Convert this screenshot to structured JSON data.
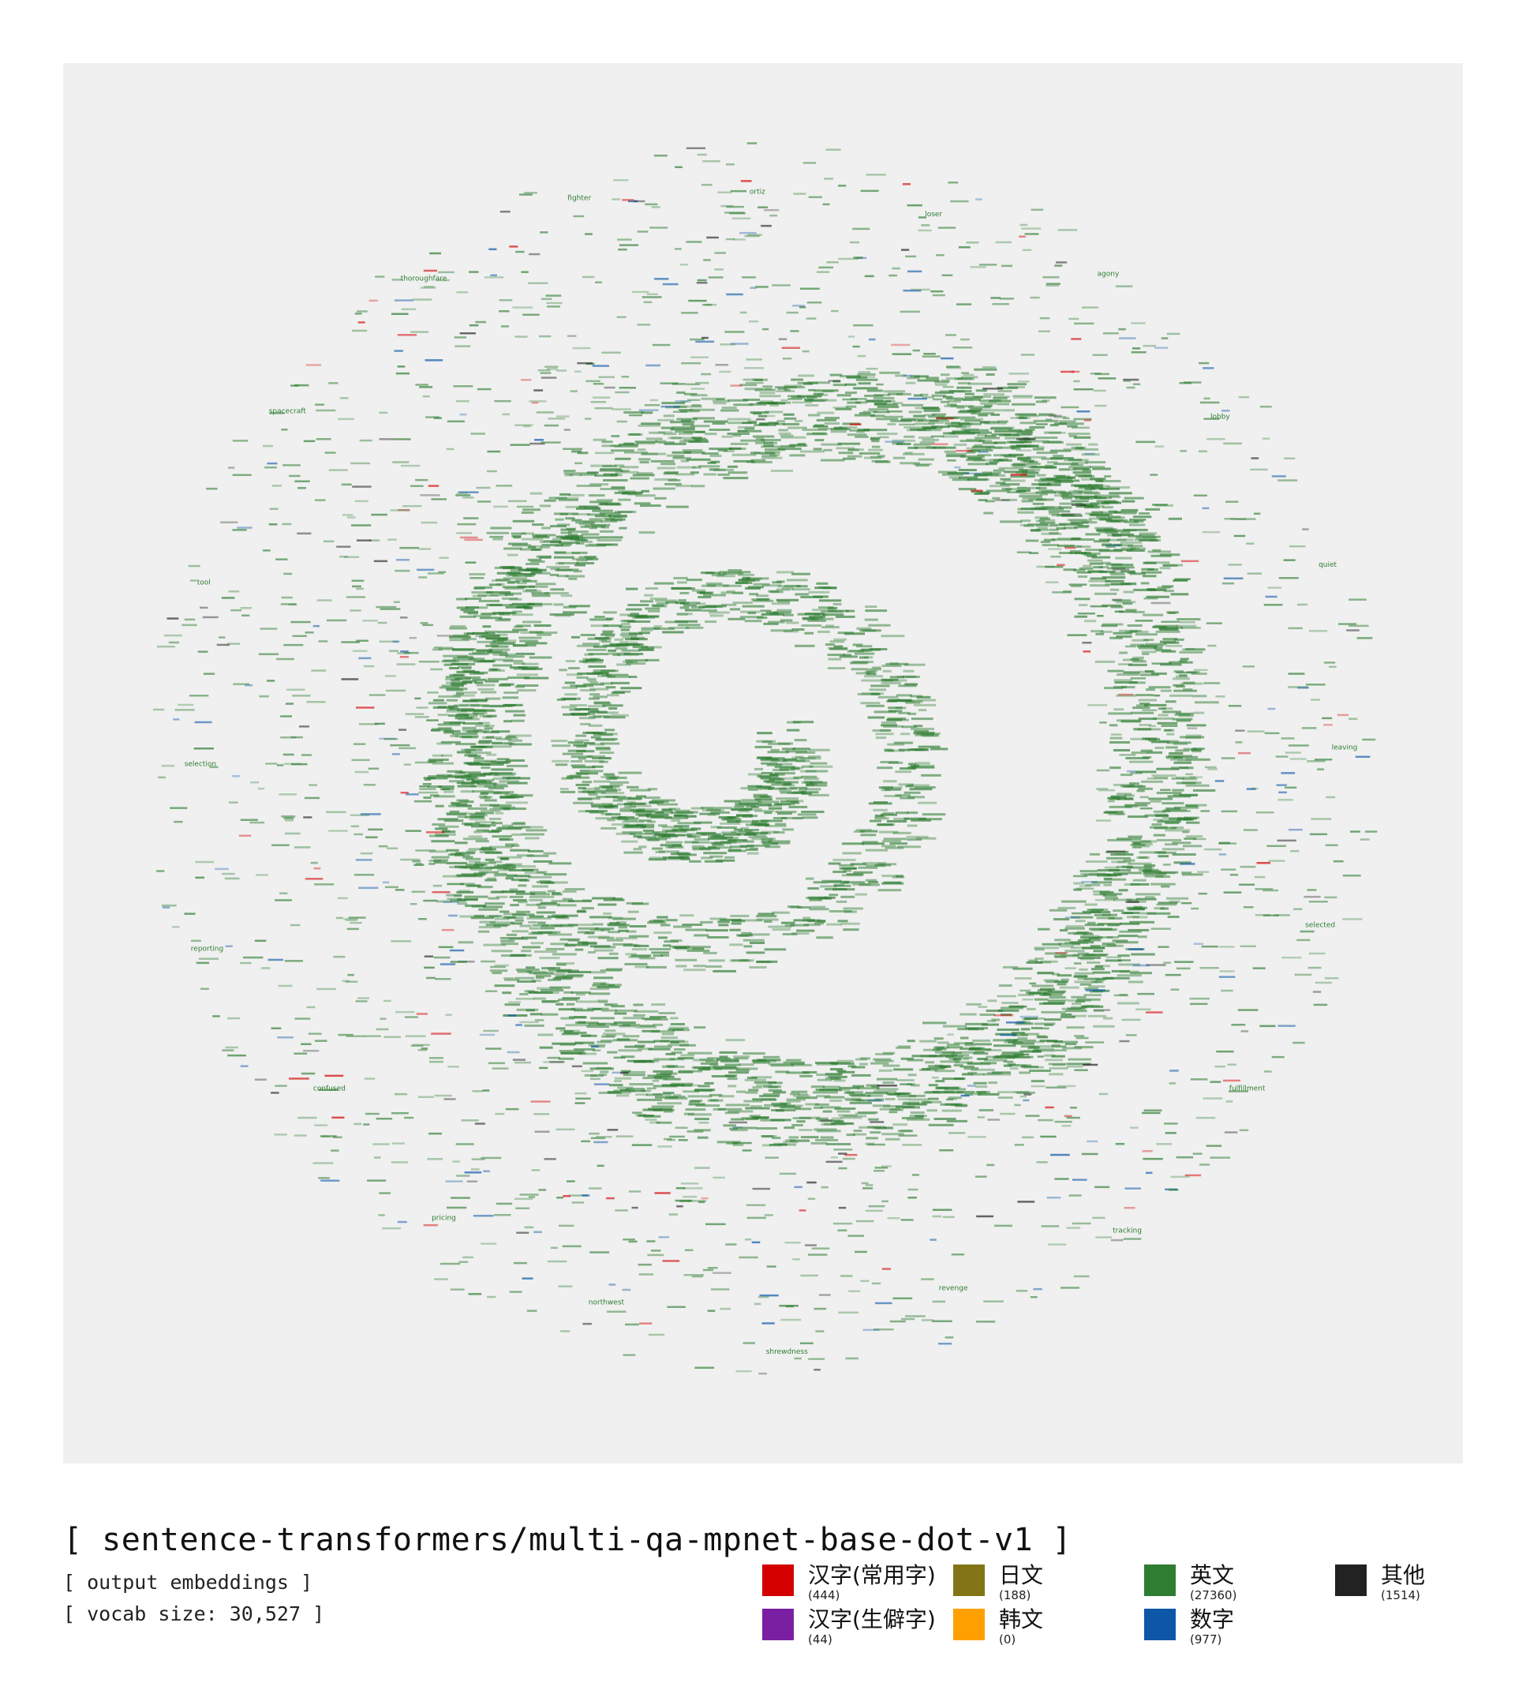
{
  "chart_data": {
    "type": "scatter",
    "title": "[ sentence-transformers/multi-qa-mpnet-base-dot-v1 ]",
    "subtitle": "[ output embeddings ]",
    "vocab_label": "[ vocab size: 30,527 ]",
    "grid": false,
    "legend_position": "bottom-right",
    "background_color": "#f0f0f0",
    "series": [
      {
        "name": "汉字(常用字)",
        "count": 444,
        "count_label": "(444)",
        "color": "#d40000"
      },
      {
        "name": "日文",
        "count": 188,
        "count_label": "(188)",
        "color": "#837516"
      },
      {
        "name": "英文",
        "count": 27360,
        "count_label": "(27360)",
        "color": "#2e7d32"
      },
      {
        "name": "其他",
        "count": 1514,
        "count_label": "(1514)",
        "color": "#222222"
      },
      {
        "name": "汉字(生僻字)",
        "count": 44,
        "count_label": "(44)",
        "color": "#7b1fa2"
      },
      {
        "name": "韩文",
        "count": 0,
        "count_label": "(0)",
        "color": "#ffa000"
      },
      {
        "name": "数字",
        "count": 977,
        "count_label": "(977)",
        "color": "#0d57a8"
      }
    ],
    "sample_labels": [
      "selected",
      "fulfillment",
      "tracking",
      "revenge",
      "shrewdness",
      "northwest",
      "pricing",
      "confused",
      "reporting",
      "selection",
      "tool",
      "spacecraft",
      "thoroughfare",
      "fighter",
      "ortiz",
      "loser",
      "agony",
      "lobby",
      "quiet",
      "leaving"
    ]
  }
}
